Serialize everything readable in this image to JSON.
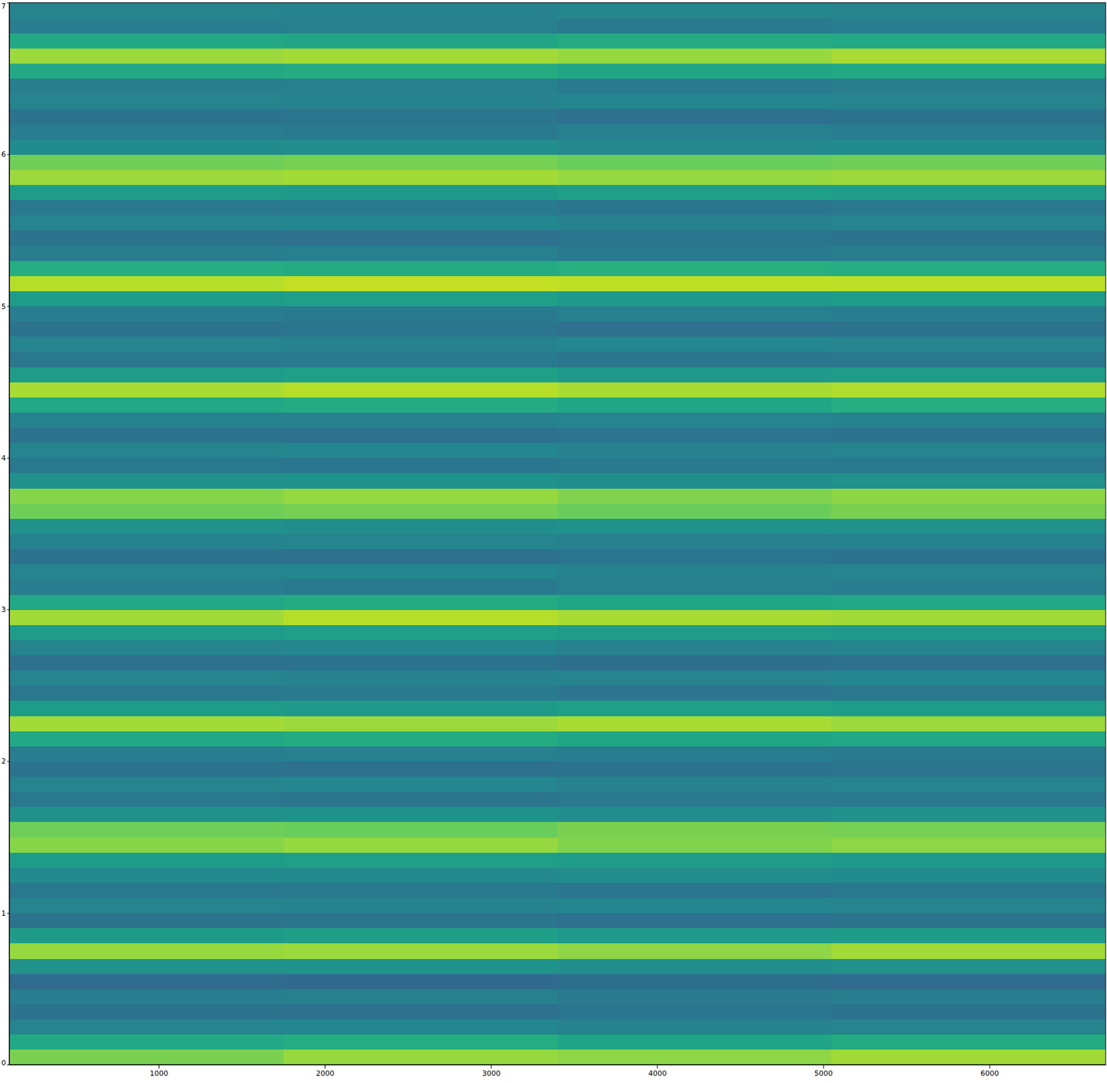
{
  "chart_data": {
    "type": "heatmap",
    "xlim": [
      100,
      6700
    ],
    "ylim": [
      0,
      7
    ],
    "xticks": [
      1000,
      2000,
      3000,
      4000,
      5000,
      6000
    ],
    "yticks": [
      0,
      1,
      2,
      3,
      4,
      5,
      6,
      7
    ],
    "zlim": [
      0,
      1
    ],
    "x_edges": [
      100,
      1750,
      3400,
      5050,
      6700
    ],
    "y_edges": [
      0,
      0.1,
      0.2,
      0.3,
      0.4,
      0.5,
      0.6,
      0.7,
      0.8,
      0.9,
      1,
      1.1,
      1.2,
      1.3,
      1.4,
      1.5,
      1.6,
      1.7,
      1.8,
      1.9,
      2,
      2.1,
      2.2,
      2.3,
      2.4,
      2.5,
      2.6,
      2.7,
      2.8,
      2.9,
      3,
      3.1,
      3.2,
      3.3,
      3.4,
      3.5,
      3.6,
      3.7,
      3.8,
      3.9,
      4,
      4.1,
      4.2,
      4.3,
      4.4,
      4.5,
      4.6,
      4.7,
      4.8,
      4.9,
      5,
      5.1,
      5.2,
      5.3,
      5.4,
      5.5,
      5.6,
      5.7,
      5.8,
      5.9,
      6,
      6.1,
      6.2,
      6.3,
      6.4,
      6.5,
      6.6,
      6.7,
      6.8,
      6.9,
      7
    ],
    "z": [
      [
        0.8,
        0.84,
        0.83,
        0.86
      ],
      [
        0.6,
        0.62,
        0.58,
        0.61
      ],
      [
        0.45,
        0.46,
        0.44,
        0.45
      ],
      [
        0.38,
        0.37,
        0.39,
        0.38
      ],
      [
        0.42,
        0.43,
        0.41,
        0.42
      ],
      [
        0.35,
        0.34,
        0.36,
        0.35
      ],
      [
        0.5,
        0.51,
        0.49,
        0.5
      ],
      [
        0.84,
        0.85,
        0.83,
        0.86
      ],
      [
        0.55,
        0.56,
        0.54,
        0.55
      ],
      [
        0.38,
        0.39,
        0.37,
        0.38
      ],
      [
        0.45,
        0.44,
        0.46,
        0.45
      ],
      [
        0.4,
        0.41,
        0.39,
        0.4
      ],
      [
        0.48,
        0.47,
        0.49,
        0.48
      ],
      [
        0.55,
        0.56,
        0.55,
        0.54
      ],
      [
        0.82,
        0.84,
        0.81,
        0.83
      ],
      [
        0.78,
        0.77,
        0.8,
        0.79
      ],
      [
        0.5,
        0.51,
        0.49,
        0.5
      ],
      [
        0.4,
        0.39,
        0.41,
        0.4
      ],
      [
        0.45,
        0.46,
        0.44,
        0.45
      ],
      [
        0.38,
        0.37,
        0.38,
        0.39
      ],
      [
        0.42,
        0.43,
        0.42,
        0.41
      ],
      [
        0.6,
        0.61,
        0.59,
        0.6
      ],
      [
        0.86,
        0.85,
        0.87,
        0.85
      ],
      [
        0.55,
        0.54,
        0.56,
        0.55
      ],
      [
        0.4,
        0.41,
        0.39,
        0.4
      ],
      [
        0.45,
        0.44,
        0.45,
        0.46
      ],
      [
        0.37,
        0.38,
        0.36,
        0.37
      ],
      [
        0.45,
        0.46,
        0.44,
        0.45
      ],
      [
        0.55,
        0.56,
        0.55,
        0.54
      ],
      [
        0.86,
        0.89,
        0.87,
        0.86
      ],
      [
        0.6,
        0.61,
        0.59,
        0.6
      ],
      [
        0.42,
        0.41,
        0.43,
        0.42
      ],
      [
        0.45,
        0.46,
        0.44,
        0.45
      ],
      [
        0.38,
        0.37,
        0.39,
        0.38
      ],
      [
        0.44,
        0.45,
        0.43,
        0.44
      ],
      [
        0.5,
        0.49,
        0.51,
        0.5
      ],
      [
        0.78,
        0.79,
        0.77,
        0.8
      ],
      [
        0.82,
        0.84,
        0.81,
        0.83
      ],
      [
        0.5,
        0.51,
        0.49,
        0.5
      ],
      [
        0.4,
        0.39,
        0.41,
        0.4
      ],
      [
        0.45,
        0.46,
        0.44,
        0.45
      ],
      [
        0.38,
        0.37,
        0.39,
        0.38
      ],
      [
        0.44,
        0.43,
        0.45,
        0.44
      ],
      [
        0.6,
        0.61,
        0.59,
        0.62
      ],
      [
        0.87,
        0.89,
        0.87,
        0.88
      ],
      [
        0.55,
        0.56,
        0.54,
        0.55
      ],
      [
        0.4,
        0.41,
        0.39,
        0.4
      ],
      [
        0.45,
        0.44,
        0.46,
        0.45
      ],
      [
        0.38,
        0.39,
        0.37,
        0.38
      ],
      [
        0.42,
        0.41,
        0.43,
        0.42
      ],
      [
        0.55,
        0.56,
        0.54,
        0.55
      ],
      [
        0.89,
        0.91,
        0.9,
        0.9
      ],
      [
        0.62,
        0.61,
        0.63,
        0.62
      ],
      [
        0.42,
        0.43,
        0.41,
        0.42
      ],
      [
        0.38,
        0.37,
        0.39,
        0.38
      ],
      [
        0.45,
        0.46,
        0.44,
        0.45
      ],
      [
        0.4,
        0.41,
        0.39,
        0.4
      ],
      [
        0.55,
        0.54,
        0.56,
        0.55
      ],
      [
        0.85,
        0.86,
        0.84,
        0.85
      ],
      [
        0.78,
        0.79,
        0.77,
        0.78
      ],
      [
        0.48,
        0.49,
        0.47,
        0.48
      ],
      [
        0.42,
        0.41,
        0.43,
        0.42
      ],
      [
        0.38,
        0.39,
        0.37,
        0.38
      ],
      [
        0.45,
        0.44,
        0.46,
        0.45
      ],
      [
        0.42,
        0.43,
        0.41,
        0.42
      ],
      [
        0.6,
        0.61,
        0.59,
        0.6
      ],
      [
        0.85,
        0.86,
        0.84,
        0.87
      ],
      [
        0.6,
        0.59,
        0.61,
        0.6
      ],
      [
        0.42,
        0.43,
        0.41,
        0.42
      ],
      [
        0.45,
        0.44,
        0.46,
        0.45
      ]
    ]
  }
}
